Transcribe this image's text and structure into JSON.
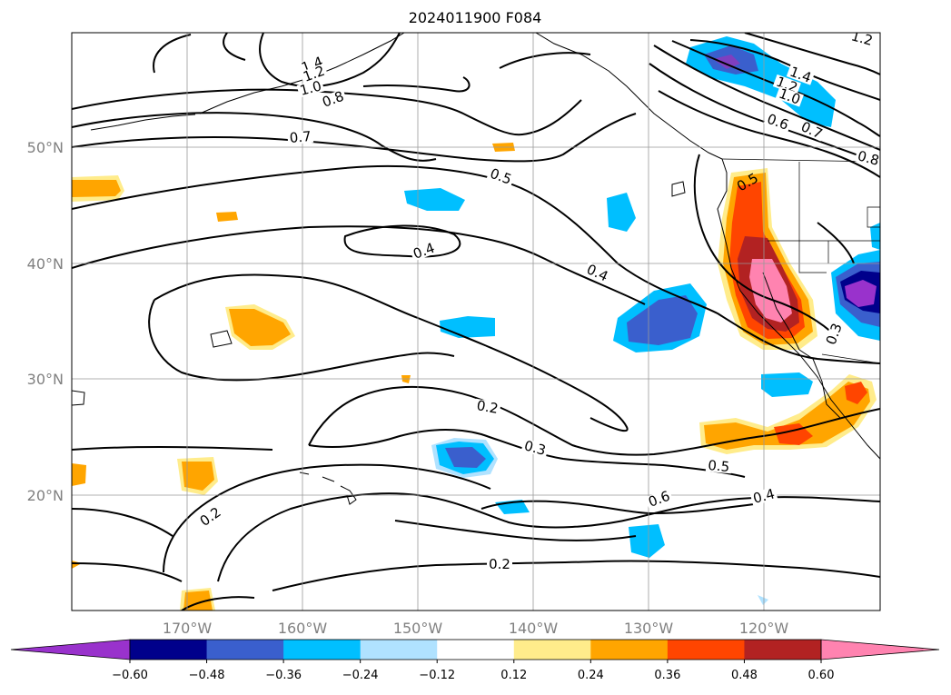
{
  "title": "2024011900 F084",
  "lat_labels": [
    "50°N",
    "40°N",
    "30°N",
    "20°N"
  ],
  "lon_labels": [
    "170°W",
    "160°W",
    "150°W",
    "140°W",
    "130°W",
    "120°W"
  ],
  "colorbar": {
    "ticks": [
      "−0.60",
      "−0.48",
      "−0.36",
      "−0.24",
      "−0.12",
      "0.12",
      "0.24",
      "0.36",
      "0.48",
      "0.60"
    ],
    "colors": [
      "#9932cc",
      "#00008b",
      "#3a5fcd",
      "#00bfff",
      "#b0e2ff",
      "#ffffff",
      "#ffec8b",
      "#ffa500",
      "#ff4500",
      "#b22222",
      "#ff83b0"
    ]
  },
  "contour_labels": [
    "1.4",
    "1.2",
    "1.0",
    "0.8",
    "0.7",
    "0.5",
    "0.4",
    "0.4",
    "0.2",
    "0.3",
    "0.2",
    "0.6",
    "0.5",
    "0.4",
    "0.2",
    "0.3",
    "1.4",
    "1.2",
    "1.0",
    "0.6",
    "0.7",
    "0.8",
    "1.2",
    "0.5"
  ]
}
